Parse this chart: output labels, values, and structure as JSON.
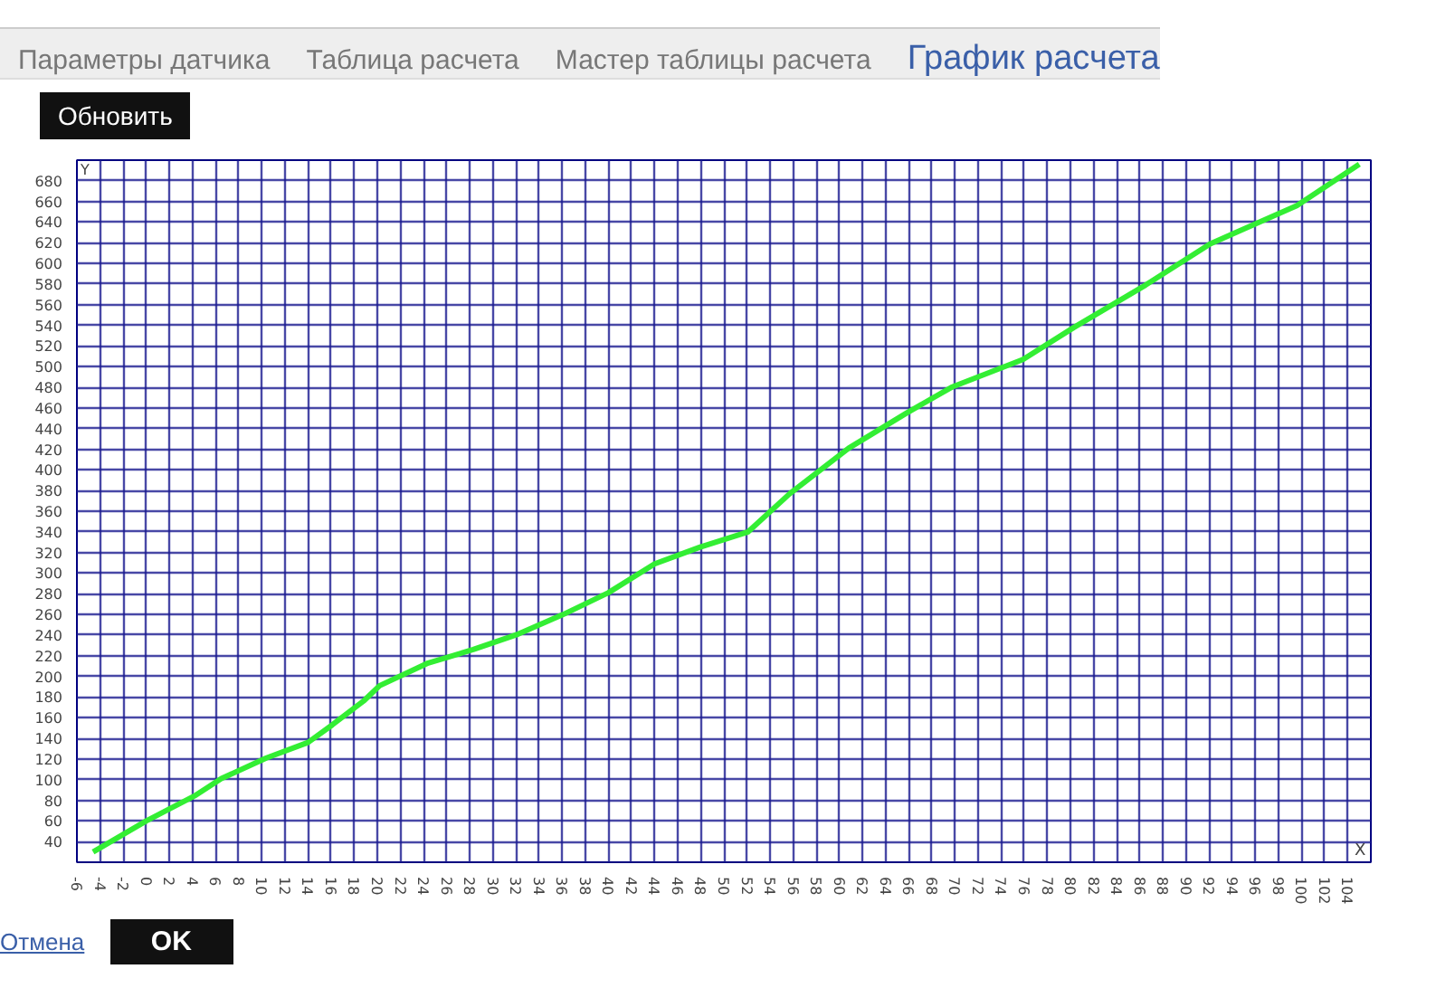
{
  "chart_data": {
    "type": "line",
    "title": "График расчета",
    "xlabel": "X",
    "ylabel": "Y",
    "annotations": [
      "Параметры датчика",
      "Таблица расчета",
      "Мастер таблицы расчета",
      "Обновить",
      "Отмена",
      "OK"
    ],
    "xlim": [
      -6,
      106
    ],
    "ylim": [
      20,
      700
    ],
    "xticks": [
      -6,
      -4,
      -2,
      0,
      2,
      4,
      6,
      8,
      10,
      12,
      14,
      16,
      18,
      20,
      22,
      24,
      26,
      28,
      30,
      32,
      34,
      36,
      38,
      40,
      42,
      44,
      46,
      48,
      50,
      52,
      54,
      56,
      58,
      60,
      62,
      64,
      66,
      68,
      70,
      72,
      74,
      76,
      78,
      80,
      82,
      84,
      86,
      88,
      90,
      92,
      94,
      96,
      98,
      100,
      102,
      104
    ],
    "yticks": [
      40,
      60,
      80,
      100,
      120,
      140,
      160,
      180,
      200,
      220,
      240,
      260,
      280,
      300,
      320,
      340,
      360,
      380,
      400,
      420,
      440,
      460,
      480,
      500,
      520,
      540,
      560,
      580,
      600,
      620,
      640,
      660,
      680
    ],
    "grid": true,
    "series": [
      {
        "color": "#33ee33",
        "x": [
          -4.6,
          0,
          4.3,
          6.5,
          10.4,
          14,
          16.1,
          18.8,
          20.2,
          24.4,
          28.3,
          32.2,
          36.1,
          40,
          44,
          47.9,
          52.1,
          55.7,
          60.8,
          65.8,
          69.7,
          75.9,
          80.3,
          86.5,
          92.1,
          99.6,
          105
        ],
        "values": [
          30,
          60,
          85,
          101,
          121,
          136,
          153,
          176,
          191,
          213,
          226,
          241,
          260,
          281,
          309,
          325,
          340,
          377,
          421,
          455,
          480,
          507,
          538,
          579,
          619,
          656,
          696
        ]
      }
    ]
  }
}
